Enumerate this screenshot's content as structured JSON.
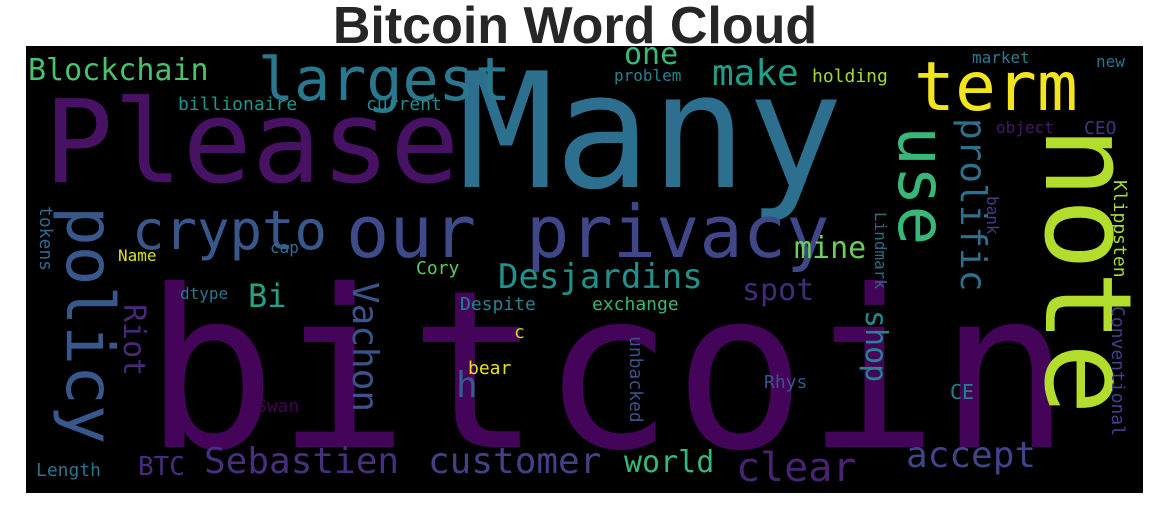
{
  "title": "Bitcoin Word Cloud",
  "chart_data": {
    "type": "wordcloud",
    "background": "#000000",
    "words": [
      {
        "text": "bitcoin",
        "color": "#44045a"
      },
      {
        "text": "Many",
        "color": "#2d6f8e"
      },
      {
        "text": "Please",
        "color": "#471164"
      },
      {
        "text": "note",
        "color": "#b2dd2c"
      },
      {
        "text": "our",
        "color": "#3e4a89"
      },
      {
        "text": "privacy",
        "color": "#3f4788"
      },
      {
        "text": "policy",
        "color": "#38588c"
      },
      {
        "text": "crypto",
        "color": "#38588c"
      },
      {
        "text": "term",
        "color": "#f1e51d"
      },
      {
        "text": "largest",
        "color": "#2a788e"
      },
      {
        "text": "use",
        "color": "#37b878"
      },
      {
        "text": "Desjardins",
        "color": "#21918c"
      },
      {
        "text": "Blockchain",
        "color": "#4ac16d"
      },
      {
        "text": "make",
        "color": "#1f9e89"
      },
      {
        "text": "one",
        "color": "#3aba76"
      },
      {
        "text": "prolific",
        "color": "#2e6e8e"
      },
      {
        "text": "Sebastien",
        "color": "#46307e"
      },
      {
        "text": "customer",
        "color": "#424186"
      },
      {
        "text": "clear",
        "color": "#482374"
      },
      {
        "text": "accept",
        "color": "#414487"
      },
      {
        "text": "world",
        "color": "#35b779"
      },
      {
        "text": "Vachon",
        "color": "#3b528b"
      },
      {
        "text": "Riot",
        "color": "#482878"
      },
      {
        "text": "Bi",
        "color": "#20a386"
      },
      {
        "text": "mine",
        "color": "#6ccd5a"
      },
      {
        "text": "spot",
        "color": "#3f2d7a"
      },
      {
        "text": "shop",
        "color": "#25848e"
      },
      {
        "text": "h",
        "color": "#365c8d"
      },
      {
        "text": "BTC",
        "color": "#472d7b"
      },
      {
        "text": "billionaire",
        "color": "#1f968b"
      },
      {
        "text": "current",
        "color": "#23898e"
      },
      {
        "text": "problem",
        "color": "#26828e"
      },
      {
        "text": "holding",
        "color": "#a0da39"
      },
      {
        "text": "market",
        "color": "#287d8e"
      },
      {
        "text": "new",
        "color": "#2c728e"
      },
      {
        "text": "object",
        "color": "#48186a"
      },
      {
        "text": "CEO",
        "color": "#46337f"
      },
      {
        "text": "Lindmark",
        "color": "#30697f"
      },
      {
        "text": "bank",
        "color": "#433e85"
      },
      {
        "text": "Klippsten",
        "color": "#a5db36"
      },
      {
        "text": "Conventional",
        "color": "#424086"
      },
      {
        "text": "Name",
        "color": "#dde318"
      },
      {
        "text": "cap",
        "color": "#2c718e"
      },
      {
        "text": "dtype",
        "color": "#2a768e"
      },
      {
        "text": "Cory",
        "color": "#5ec962"
      },
      {
        "text": "Despite",
        "color": "#26828e"
      },
      {
        "text": "exchange",
        "color": "#35b779"
      },
      {
        "text": "c",
        "color": "#bddf26"
      },
      {
        "text": "tokens",
        "color": "#31688e"
      },
      {
        "text": "bear",
        "color": "#e5e419"
      },
      {
        "text": "unbacked",
        "color": "#3b528b"
      },
      {
        "text": "Rhys",
        "color": "#3a548c"
      },
      {
        "text": "Swan",
        "color": "#440154"
      },
      {
        "text": "CE",
        "color": "#277f8e"
      },
      {
        "text": "Length",
        "color": "#2c738e"
      }
    ]
  }
}
